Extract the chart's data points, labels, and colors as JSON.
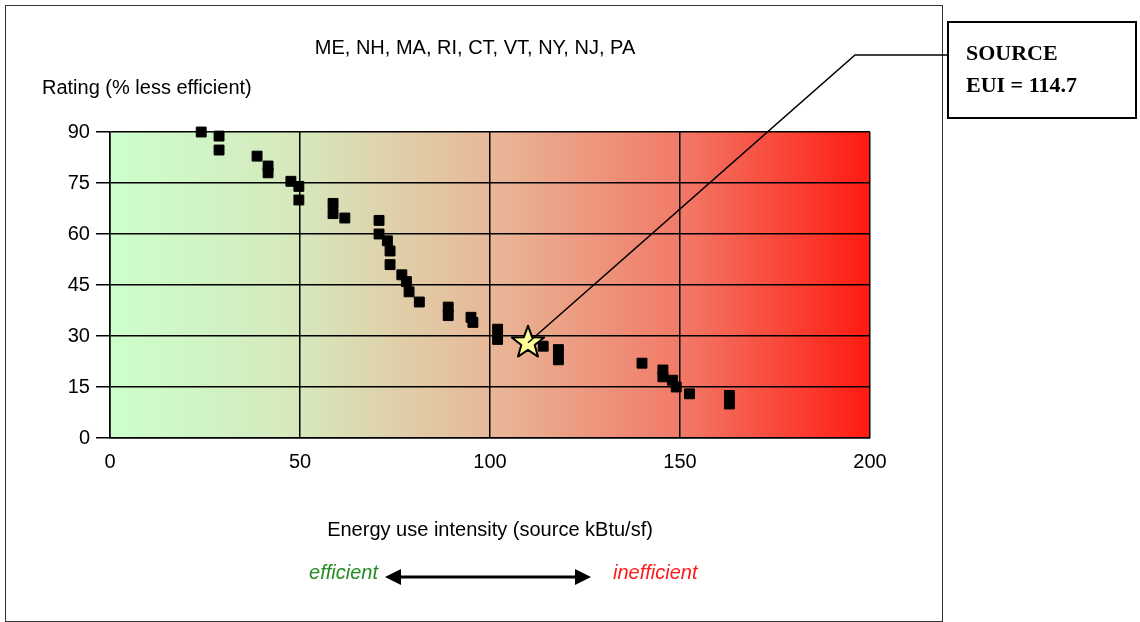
{
  "chart_data": {
    "type": "scatter",
    "title": "ME, NH, MA, RI, CT, VT, NY, NJ, PA",
    "ylabel": "Rating (% less efficient)",
    "xlabel": "Energy use intensity (source kBtu/sf)",
    "xlim": [
      0,
      200
    ],
    "xticks": [
      0,
      50,
      100,
      150,
      200
    ],
    "ylim": [
      0,
      90
    ],
    "yticks": [
      0,
      15,
      30,
      45,
      60,
      75,
      90
    ],
    "grid": true,
    "marker": "square",
    "series": [
      {
        "color": "#000000",
        "x": [
          24,
          28.7,
          28.7,
          38.7,
          41.6,
          41.6,
          47.6,
          49.7,
          49.7,
          58.7,
          58.7,
          61.8,
          70.8,
          70.8,
          73,
          73.7,
          73.7,
          76.8,
          78,
          78.7,
          81.4,
          89,
          89,
          95,
          95.5,
          102,
          102,
          114,
          118,
          118,
          140,
          145.5,
          145.5,
          148,
          149,
          152.5,
          163,
          163
        ],
        "values": [
          90,
          88.8,
          84.7,
          82.9,
          80,
          78,
          75.5,
          74,
          70,
          69,
          66,
          64.7,
          64,
          60,
          58,
          55,
          51,
          48,
          46,
          43,
          40,
          38.5,
          36,
          35.5,
          34,
          32,
          29,
          27,
          26,
          23,
          22,
          20,
          18,
          17,
          15,
          13,
          12.5,
          10
        ]
      },
      {
        "type": "scatter",
        "color": "#ffff99",
        "marker": "star",
        "x": [
          110
        ],
        "values": [
          28
        ]
      }
    ],
    "annotations": [
      {
        "text": "SOURCE\nEUI = 114.7",
        "x": 110,
        "y": 28
      },
      "efficient",
      "inefficient"
    ]
  }
}
